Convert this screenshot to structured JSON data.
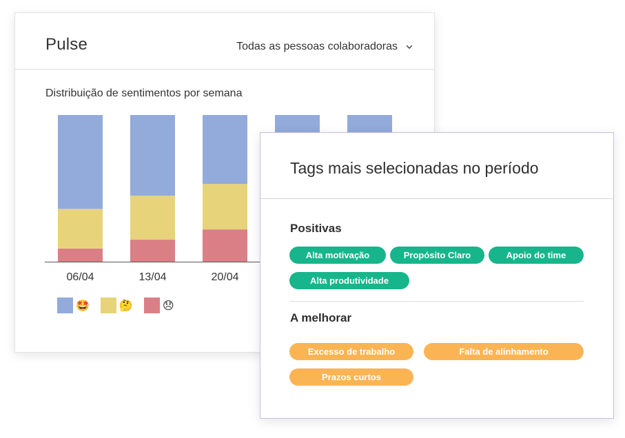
{
  "pulse": {
    "title": "Pulse",
    "filter_label": "Todas as pessoas colaboradoras",
    "chart_title": "Distribuição de sentimentos por semana"
  },
  "colors": {
    "happy": "#92abdb",
    "thinking": "#e7d37a",
    "sad": "#db7f86",
    "positive_tag": "#17b58b",
    "improve_tag": "#fbb454"
  },
  "legend": [
    {
      "emoji": "🤩",
      "color": "#92abdb"
    },
    {
      "emoji": "🤔",
      "color": "#e7d37a"
    },
    {
      "emoji": "😞",
      "color": "#db7f86"
    }
  ],
  "chart_data": {
    "type": "bar",
    "stacked": true,
    "categories": [
      "06/04",
      "13/04",
      "20/04",
      "",
      ""
    ],
    "series": [
      {
        "values": [
          9,
          15,
          22,
          null,
          null
        ]
      },
      {
        "values": [
          27,
          30,
          31,
          null,
          null
        ]
      },
      {
        "values": [
          64,
          55,
          47,
          null,
          null
        ]
      }
    ],
    "ylim": [
      0,
      100
    ],
    "legend_position": "bottom-left"
  },
  "tags": {
    "title": "Tags mais selecionadas no período",
    "positive_title": "Positivas",
    "positive": [
      "Alta motivação",
      "Propósito Claro",
      "Apoio do time",
      "Alta produtividade"
    ],
    "improve_title": "A melhorar",
    "improve": [
      "Excesso de trabalho",
      "Falta de alinhamento",
      "Prazos curtos"
    ]
  }
}
